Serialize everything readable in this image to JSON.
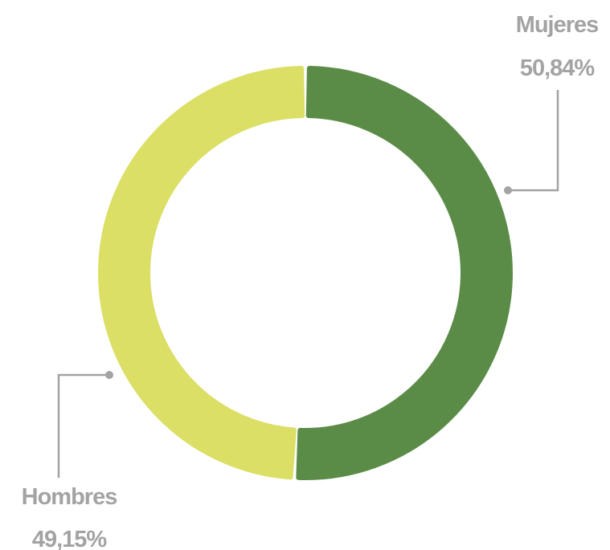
{
  "chart_data": {
    "type": "pie",
    "style": "donut",
    "title": "",
    "slices": [
      {
        "name": "Mujeres",
        "value": 50.84,
        "value_label": "50,84%",
        "color": "#5b8c47"
      },
      {
        "name": "Hombres",
        "value": 49.15,
        "value_label": "49,15%",
        "color": "#dbdf66"
      }
    ],
    "legend": "none",
    "background": "#ffffff",
    "label_color": "#a3a3a3"
  }
}
